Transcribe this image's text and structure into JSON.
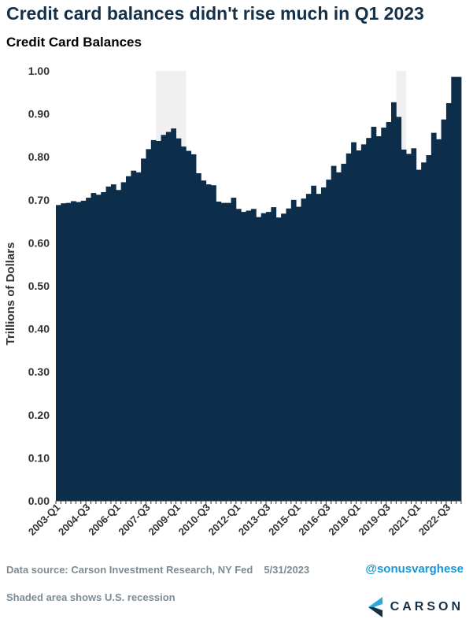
{
  "title": "Credit card balances didn't rise much in Q1 2023",
  "footer": {
    "source": "Data source: Carson Investment Research, NY Fed",
    "date": "5/31/2023",
    "note": "Shaded area shows U.S. recession",
    "handle": "@sonusvarghese",
    "brand": "CARSON"
  },
  "colors": {
    "bar": "#0d2e4a",
    "recession": "#f0f0f0",
    "axis": "#333333",
    "grid": "#e6e6e6",
    "logo_light": "#29a8e0",
    "logo_dark": "#163048"
  },
  "logo_icon": "carson-logo-icon",
  "chart_data": {
    "type": "bar",
    "title": "Credit Card Balances",
    "ylabel": "Trillions of Dollars",
    "ylim": [
      0,
      1.0
    ],
    "yticks": [
      "0.00",
      "0.10",
      "0.20",
      "0.30",
      "0.40",
      "0.50",
      "0.60",
      "0.70",
      "0.80",
      "0.90",
      "1.00"
    ],
    "xtick_labels": [
      "2003-Q1",
      "2004-Q3",
      "2006-Q1",
      "2007-Q3",
      "2009-Q1",
      "2010-Q3",
      "2012-Q1",
      "2013-Q3",
      "2015-Q1",
      "2016-Q3",
      "2018-Q1",
      "2019-Q3",
      "2021-Q1",
      "2022-Q3"
    ],
    "start_quarter": "2003-Q1",
    "recessions": [
      {
        "start": "2008-Q1",
        "end": "2009-Q2"
      },
      {
        "start": "2020-Q1",
        "end": "2020-Q2"
      }
    ],
    "values": [
      0.688,
      0.692,
      0.693,
      0.697,
      0.695,
      0.698,
      0.705,
      0.716,
      0.712,
      0.718,
      0.731,
      0.736,
      0.723,
      0.741,
      0.755,
      0.768,
      0.764,
      0.796,
      0.818,
      0.839,
      0.837,
      0.851,
      0.858,
      0.866,
      0.843,
      0.824,
      0.814,
      0.806,
      0.762,
      0.745,
      0.736,
      0.734,
      0.696,
      0.693,
      0.693,
      0.705,
      0.679,
      0.672,
      0.675,
      0.679,
      0.66,
      0.669,
      0.672,
      0.683,
      0.659,
      0.668,
      0.68,
      0.7,
      0.684,
      0.703,
      0.714,
      0.733,
      0.714,
      0.729,
      0.747,
      0.779,
      0.764,
      0.784,
      0.808,
      0.834,
      0.815,
      0.829,
      0.844,
      0.87,
      0.848,
      0.868,
      0.881,
      0.927,
      0.893,
      0.817,
      0.807,
      0.82,
      0.77,
      0.787,
      0.804,
      0.856,
      0.841,
      0.887,
      0.925,
      0.986,
      0.986
    ]
  }
}
